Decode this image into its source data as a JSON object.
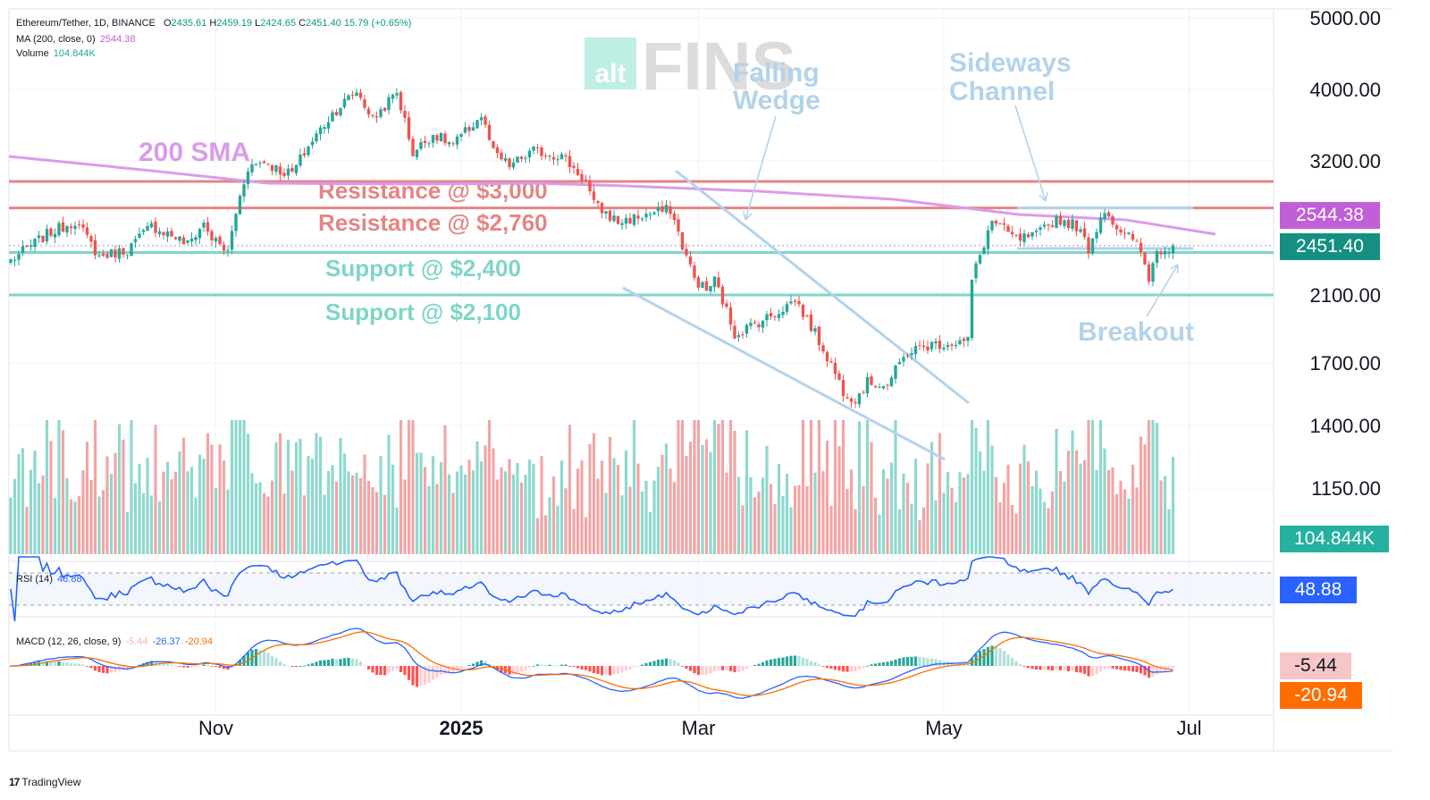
{
  "header": {
    "symbol": "Ethereum/Tether, 1D, BINANCE",
    "ohlc": [
      {
        "k": "O",
        "v": "2435.61"
      },
      {
        "k": "H",
        "v": "2459.19"
      },
      {
        "k": "L",
        "v": "2424.65"
      },
      {
        "k": "C",
        "v": "2451.40"
      }
    ],
    "change": "15.79 (+0.65%)",
    "ma_label": "MA (200, close, 0)",
    "ma_value": "2544.38",
    "volume_label": "Volume",
    "volume_value": "104.844K",
    "rsi_label": "RSI (14)",
    "rsi_value": "48.88",
    "macd_label": "MACD (12, 26, close, 9)",
    "macd_values": [
      "-5.44",
      "-26.37",
      "-20.94"
    ]
  },
  "watermark": {
    "small": "alt",
    "big": "FINS"
  },
  "tags": {
    "ma": "2544.38",
    "price": "2451.40",
    "volume": "104.844K",
    "rsi": "48.88",
    "macd_hist": "-5.44",
    "macd_signal": "-20.94"
  },
  "branding": {
    "mark": "17",
    "name": "TradingView"
  },
  "colors": {
    "up": "#26a69a",
    "down": "#ef5350",
    "vol_up": "#8ed8ce",
    "vol_down": "#f2a5a5",
    "ma": "#da9bea",
    "ma_tag": "#c05fd6",
    "resistance": "#e48585",
    "support": "#7fd5c7",
    "annotation": "#b3d3ea",
    "rsi": "#2962ff",
    "macd": "#2962ff",
    "signal": "#ff6d00"
  },
  "chart_data": {
    "type": "candlestick",
    "y_ticks": [
      "5000.00",
      "4000.00",
      "3200.00",
      "2100.00",
      "1700.00",
      "1400.00",
      "1150.00"
    ],
    "x_ticks": [
      {
        "label": "Nov",
        "date": "2024-11-01"
      },
      {
        "label": "2025",
        "date": "2025-01-01"
      },
      {
        "label": "Mar",
        "date": "2025-03-01"
      },
      {
        "label": "May",
        "date": "2025-05-01"
      },
      {
        "label": "Jul",
        "date": "2025-07-01"
      }
    ],
    "start_date": "2024-09-11",
    "ma_value": 2544.38,
    "last_close": 2451.4,
    "levels": [
      {
        "label": "Resistance @ $3,000",
        "price": 3000,
        "kind": "resistance"
      },
      {
        "label": "Resistance @ $2,760",
        "price": 2760,
        "kind": "resistance"
      },
      {
        "label": "Support @ $2,400",
        "price": 2400,
        "kind": "support"
      },
      {
        "label": "Support @ $2,100",
        "price": 2100,
        "kind": "support"
      }
    ],
    "annotations": [
      "200 SMA",
      "Falling",
      "Wedge",
      "Sideways",
      "Channel",
      "Breakout"
    ],
    "close_keypoints": [
      [
        "2024-09-11",
        2340
      ],
      [
        "2024-09-20",
        2540
      ],
      [
        "2024-09-27",
        2650
      ],
      [
        "2024-10-03",
        2370
      ],
      [
        "2024-10-10",
        2420
      ],
      [
        "2024-10-16",
        2610
      ],
      [
        "2024-10-22",
        2520
      ],
      [
        "2024-10-25",
        2460
      ],
      [
        "2024-10-29",
        2630
      ],
      [
        "2024-10-31",
        2510
      ],
      [
        "2024-11-04",
        2400
      ],
      [
        "2024-11-06",
        2720
      ],
      [
        "2024-11-09",
        3140
      ],
      [
        "2024-11-13",
        3200
      ],
      [
        "2024-11-17",
        3100
      ],
      [
        "2024-11-20",
        3080
      ],
      [
        "2024-11-24",
        3350
      ],
      [
        "2024-11-30",
        3710
      ],
      [
        "2024-12-06",
        3980
      ],
      [
        "2024-12-10",
        3640
      ],
      [
        "2024-12-16",
        3960
      ],
      [
        "2024-12-20",
        3280
      ],
      [
        "2024-12-25",
        3480
      ],
      [
        "2024-12-30",
        3360
      ],
      [
        "2025-01-06",
        3680
      ],
      [
        "2025-01-09",
        3280
      ],
      [
        "2025-01-13",
        3150
      ],
      [
        "2025-01-19",
        3300
      ],
      [
        "2025-01-26",
        3250
      ],
      [
        "2025-02-01",
        3000
      ],
      [
        "2025-02-03",
        2790
      ],
      [
        "2025-02-09",
        2640
      ],
      [
        "2025-02-16",
        2700
      ],
      [
        "2025-02-22",
        2750
      ],
      [
        "2025-02-25",
        2450
      ],
      [
        "2025-02-28",
        2210
      ],
      [
        "2025-03-03",
        2130
      ],
      [
        "2025-03-05",
        2200
      ],
      [
        "2025-03-10",
        1860
      ],
      [
        "2025-03-15",
        1920
      ],
      [
        "2025-03-20",
        1980
      ],
      [
        "2025-03-25",
        2070
      ],
      [
        "2025-03-31",
        1820
      ],
      [
        "2025-04-06",
        1560
      ],
      [
        "2025-04-09",
        1520
      ],
      [
        "2025-04-12",
        1600
      ],
      [
        "2025-04-17",
        1590
      ],
      [
        "2025-04-22",
        1760
      ],
      [
        "2025-04-28",
        1800
      ],
      [
        "2025-05-07",
        1820
      ],
      [
        "2025-05-08",
        2200
      ],
      [
        "2025-05-13",
        2650
      ],
      [
        "2025-05-19",
        2500
      ],
      [
        "2025-05-24",
        2530
      ],
      [
        "2025-05-29",
        2670
      ],
      [
        "2025-06-03",
        2610
      ],
      [
        "2025-06-06",
        2430
      ],
      [
        "2025-06-10",
        2760
      ],
      [
        "2025-06-14",
        2530
      ],
      [
        "2025-06-17",
        2510
      ],
      [
        "2025-06-19",
        2400
      ],
      [
        "2025-06-21",
        2220
      ],
      [
        "2025-06-23",
        2410
      ],
      [
        "2025-06-27",
        2451.4
      ]
    ]
  }
}
